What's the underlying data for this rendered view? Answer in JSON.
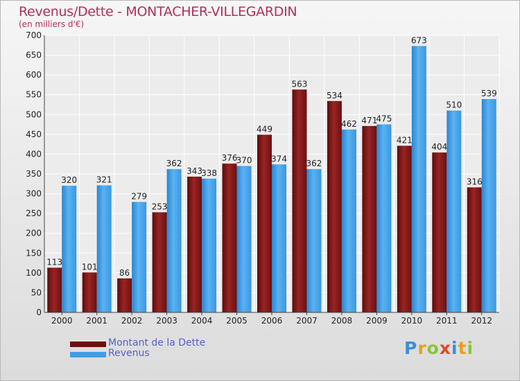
{
  "header": {
    "title": "Revenus/Dette - MONTACHER-VILLEGARDIN",
    "subtitle": "(en milliers d'€)"
  },
  "chart_data": {
    "type": "bar",
    "categories": [
      "2000",
      "2001",
      "2002",
      "2003",
      "2004",
      "2005",
      "2006",
      "2007",
      "2008",
      "2009",
      "2010",
      "2011",
      "2012"
    ],
    "series": [
      {
        "name": "Montant de la Dette",
        "color": "#8b1a1a",
        "values": [
          113,
          101,
          86,
          253,
          343,
          376,
          449,
          563,
          534,
          471,
          421,
          404,
          316
        ]
      },
      {
        "name": "Revenus",
        "color": "#3e9ee6",
        "values": [
          320,
          321,
          279,
          362,
          338,
          370,
          374,
          362,
          462,
          475,
          673,
          510,
          539
        ]
      }
    ],
    "yticks": [
      0,
      50,
      100,
      150,
      200,
      250,
      300,
      350,
      400,
      450,
      500,
      550,
      600,
      650,
      700
    ],
    "ylim": [
      0,
      700
    ],
    "grid": true,
    "legend_position": "bottom-left"
  },
  "legend": {
    "items": [
      {
        "label": "Montant de la Dette",
        "color": "#6e0f0f"
      },
      {
        "label": "Revenus",
        "color": "#3e9ee6"
      }
    ]
  },
  "logo": {
    "letters": [
      "P",
      "r",
      "o",
      "x",
      "i",
      "t",
      "i"
    ],
    "colors": [
      "#3a8fd8",
      "#e8a020",
      "#8cc43c",
      "#e04a2a",
      "#3a8fd8",
      "#e8a020",
      "#8cc43c"
    ]
  }
}
